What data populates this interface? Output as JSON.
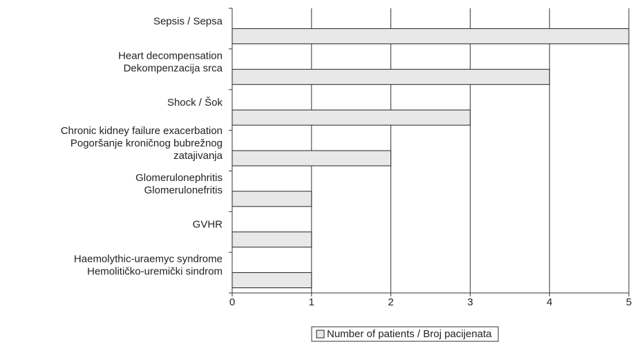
{
  "chart_data": {
    "type": "bar",
    "orientation": "horizontal",
    "categories": [
      [
        "Sepsis / Sepsa"
      ],
      [
        "Heart decompensation",
        "Dekompenzacija srca"
      ],
      [
        "Shock / Šok"
      ],
      [
        "Chronic kidney failure exacerbation",
        "Pogoršanje kroničnog bubrežnog",
        "zatajivanja"
      ],
      [
        "Glomerulonephritis",
        "Glomerulonefritis"
      ],
      [
        "GVHR"
      ],
      [
        "Haemolythic-uraemyc syndrome",
        "Hemolitičko-uremički sindrom"
      ]
    ],
    "series": [
      {
        "name": "Number of patients / Broj pacijenata",
        "color": "#e8e8e8",
        "values": [
          5,
          4,
          3,
          2,
          1,
          1,
          1
        ]
      }
    ],
    "xlim": [
      0,
      5
    ],
    "xticks": [
      0,
      1,
      2,
      3,
      4,
      5
    ],
    "grid": true,
    "legend": "bottom"
  }
}
